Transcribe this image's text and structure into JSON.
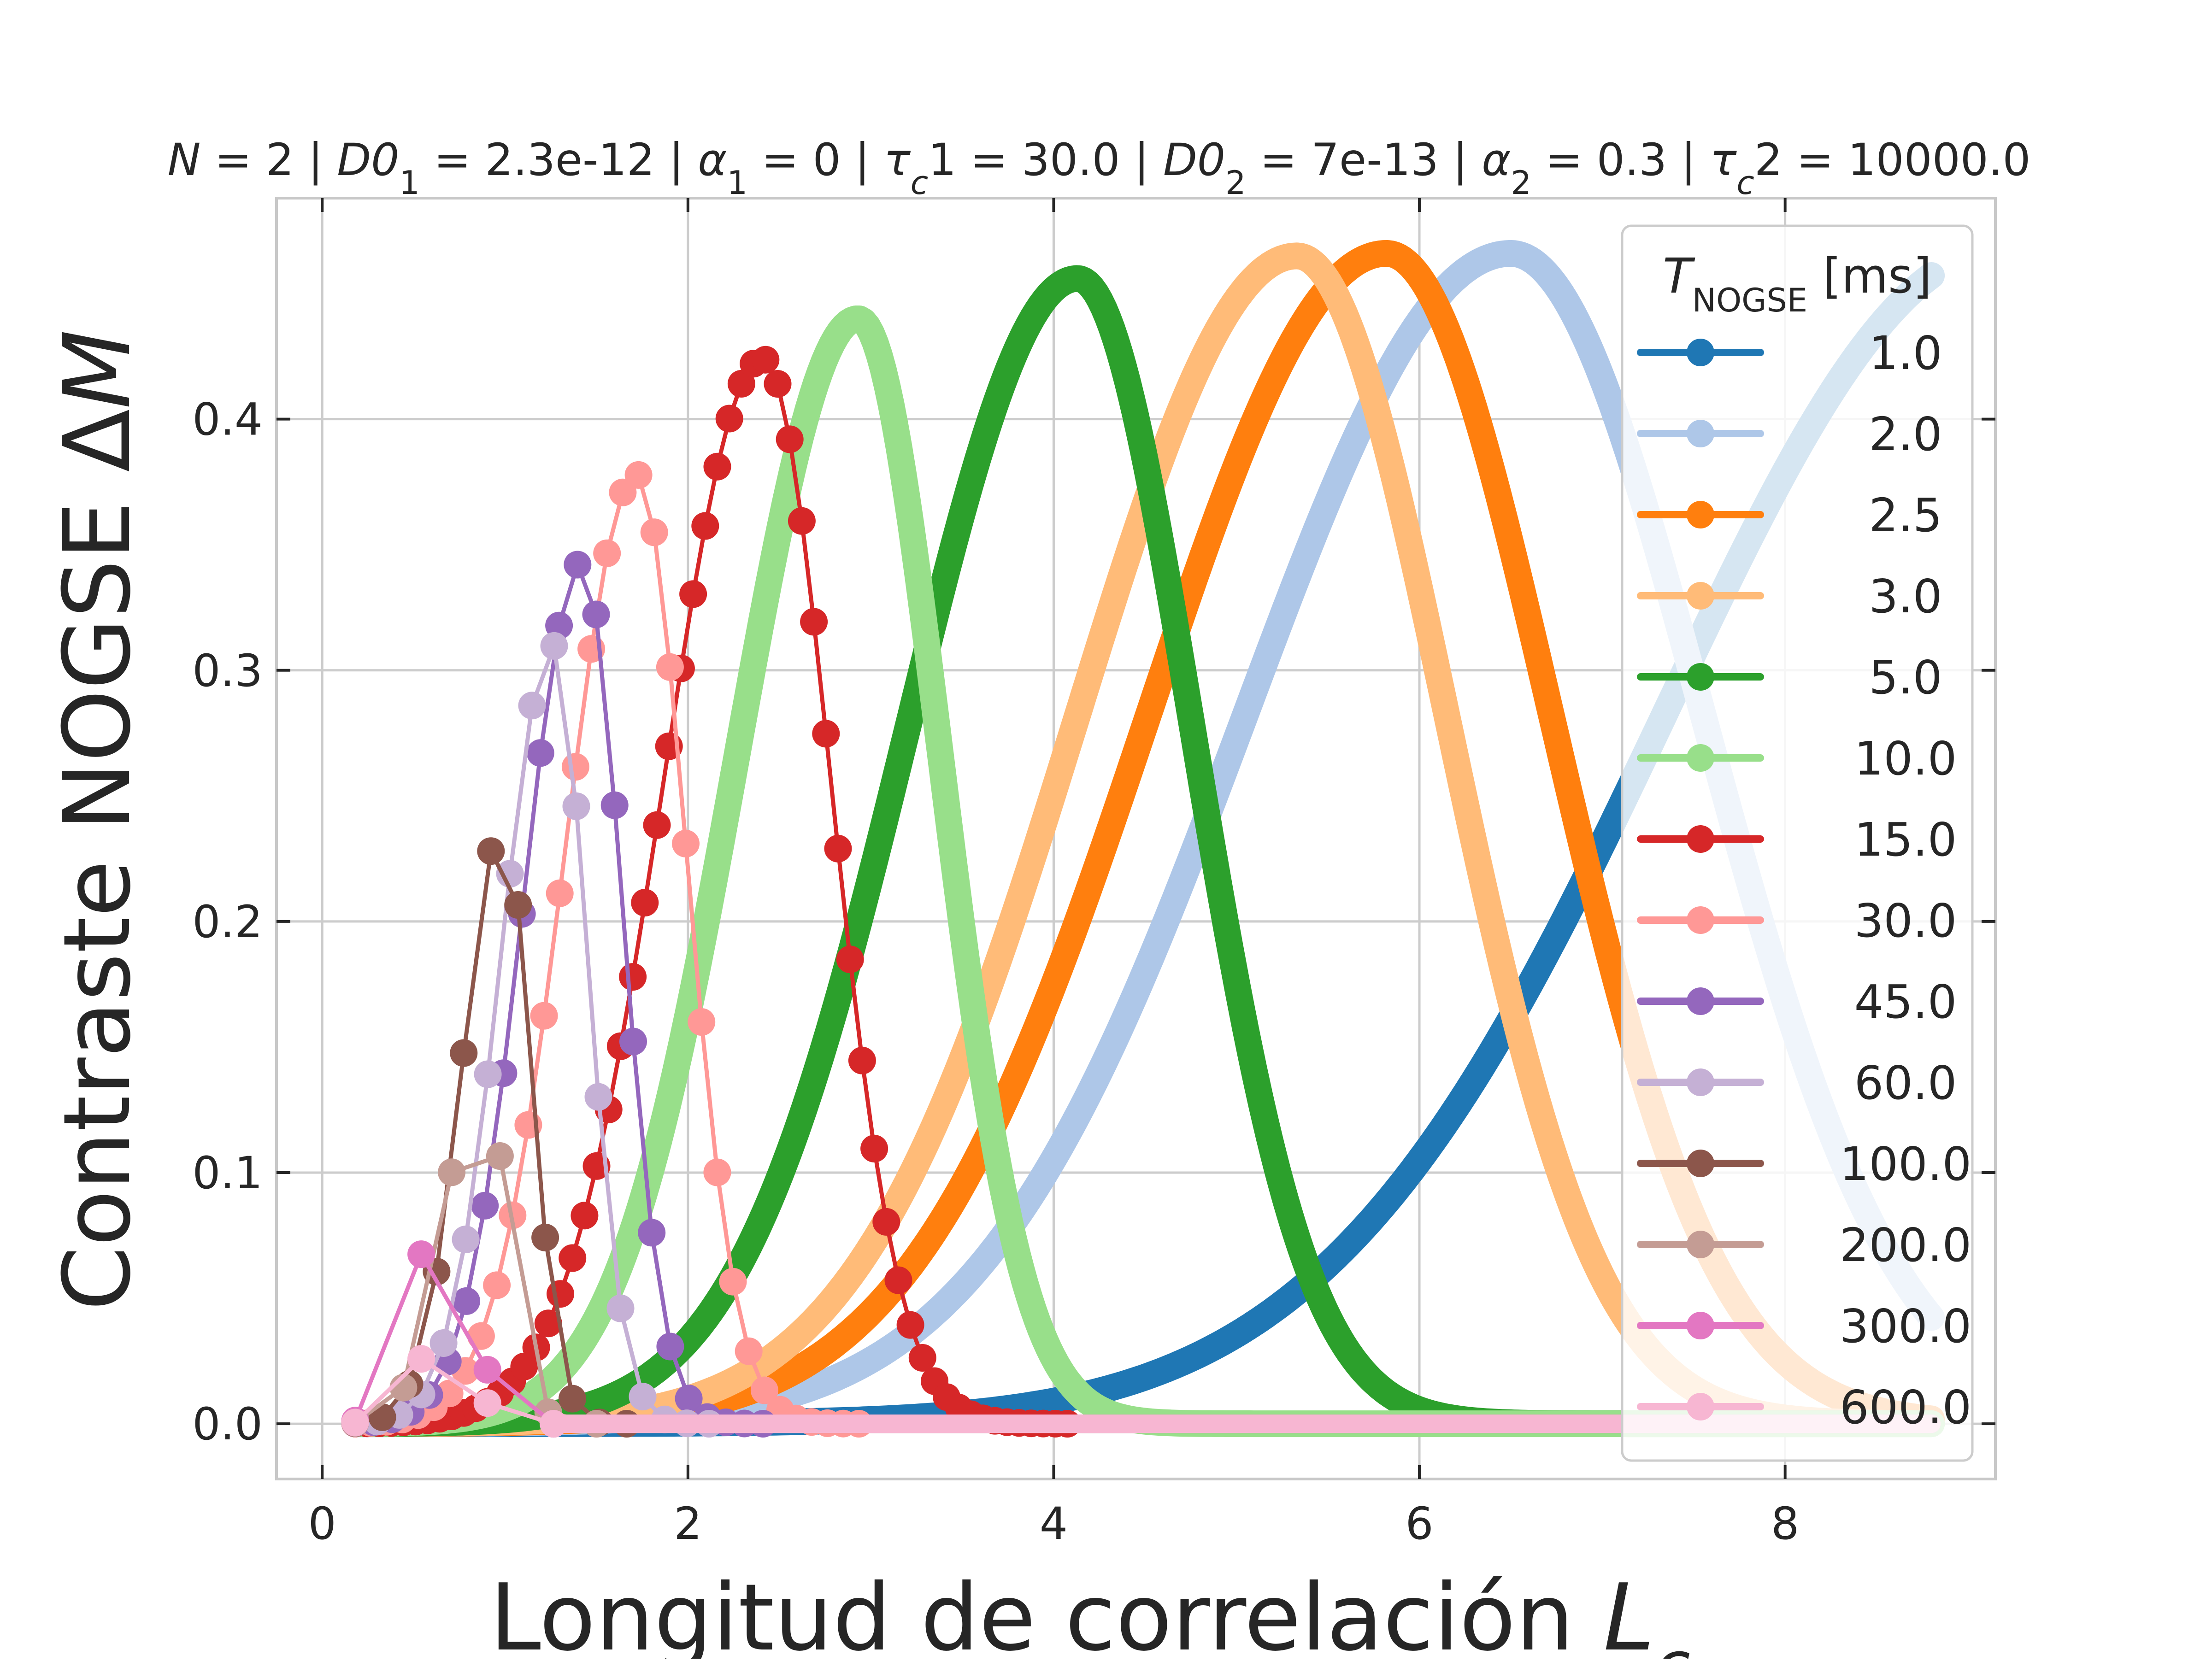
{
  "chart_data": {
    "type": "line",
    "title": {
      "parts": [
        {
          "text": "N",
          "italic": true
        },
        {
          "text": " = 2 | "
        },
        {
          "text": "D0",
          "italic": true
        },
        {
          "text": "1",
          "sub": true
        },
        {
          "text": " = 2.3e-12 | "
        },
        {
          "text": "α",
          "italic": true
        },
        {
          "text": "1",
          "sub": true
        },
        {
          "text": " = 0 | "
        },
        {
          "text": "τ",
          "italic": true
        },
        {
          "text": "c",
          "sub": true,
          "italic": true
        },
        {
          "text": "1 = 30.0 | "
        },
        {
          "text": "D0",
          "italic": true
        },
        {
          "text": "2",
          "sub": true
        },
        {
          "text": " = 7e-13 | "
        },
        {
          "text": "α",
          "italic": true
        },
        {
          "text": "2",
          "sub": true
        },
        {
          "text": " = 0.3 | "
        },
        {
          "text": "τ",
          "italic": true
        },
        {
          "text": "c",
          "sub": true,
          "italic": true
        },
        {
          "text": "2 = 10000.0"
        }
      ]
    },
    "xlabel": {
      "text": "Longitud de correlación ",
      "var": "L",
      "var_sub": "c"
    },
    "ylabel": {
      "text": "Contraste NOGSE Δ",
      "var": "M"
    },
    "xlim": [
      -0.25,
      9.15
    ],
    "ylim": [
      -0.022,
      0.488
    ],
    "xticks": [
      0,
      2,
      4,
      6,
      8
    ],
    "xtick_labels": [
      "0",
      "2",
      "4",
      "6",
      "8"
    ],
    "yticks": [
      0.0,
      0.1,
      0.2,
      0.3,
      0.4
    ],
    "ytick_labels": [
      "0.0",
      "0.1",
      "0.2",
      "0.3",
      "0.4"
    ],
    "grid": true,
    "legend_position": "top-right",
    "legend_title": {
      "var": "T",
      "var_sub": "NOGSE",
      "unit": " [ms]"
    },
    "series": [
      {
        "name": "1.0",
        "color": "#1f77b4",
        "peak_x": 9.2,
        "peak_y": 0.468,
        "sigma_left": 1.85,
        "sigma_right": 1.0,
        "n_points": 0
      },
      {
        "name": "2.0",
        "color": "#aec7e8",
        "peak_x": 6.5,
        "peak_y": 0.466,
        "sigma_left": 1.45,
        "sigma_right": 1.05,
        "n_points": 0
      },
      {
        "name": "2.5",
        "color": "#ff7f0e",
        "peak_x": 5.82,
        "peak_y": 0.466,
        "sigma_left": 1.3,
        "sigma_right": 0.9,
        "n_points": 0
      },
      {
        "name": "3.0",
        "color": "#ffbb78",
        "peak_x": 5.33,
        "peak_y": 0.465,
        "sigma_left": 1.2,
        "sigma_right": 0.82,
        "n_points": 0
      },
      {
        "name": "5.0",
        "color": "#2ca02c",
        "peak_x": 4.13,
        "peak_y": 0.456,
        "sigma_left": 0.93,
        "sigma_right": 0.63,
        "n_points": 0
      },
      {
        "name": "10.0",
        "color": "#98df8a",
        "peak_x": 2.93,
        "peak_y": 0.44,
        "sigma_left": 0.66,
        "sigma_right": 0.45,
        "n_points": 0
      },
      {
        "name": "15.0",
        "color": "#d62728",
        "peak_x": 2.41,
        "peak_y": 0.424,
        "sigma_left": 0.54,
        "sigma_right": 0.37,
        "n_points": 60
      },
      {
        "name": "30.0",
        "color": "#ff9896",
        "peak_x": 1.72,
        "peak_y": 0.378,
        "sigma_left": 0.39,
        "sigma_right": 0.27,
        "n_points": 33
      },
      {
        "name": "45.0",
        "color": "#9467bd",
        "peak_x": 1.42,
        "peak_y": 0.343,
        "sigma_left": 0.32,
        "sigma_right": 0.22,
        "n_points": 23
      },
      {
        "name": "60.0",
        "color": "#c5b0d5",
        "peak_x": 1.26,
        "peak_y": 0.31,
        "sigma_left": 0.28,
        "sigma_right": 0.19,
        "n_points": 17
      },
      {
        "name": "100.0",
        "color": "#8c564b",
        "peak_x": 0.99,
        "peak_y": 0.239,
        "sigma_left": 0.22,
        "sigma_right": 0.15,
        "n_points": 11
      },
      {
        "name": "200.0",
        "color": "#c49c94",
        "peak_x": 0.87,
        "peak_y": 0.139,
        "sigma_left": 0.2,
        "sigma_right": 0.14,
        "n_points": 6
      },
      {
        "name": "300.0",
        "color": "#e377c2",
        "peak_x": 0.68,
        "peak_y": 0.094,
        "sigma_left": 0.17,
        "sigma_right": 0.13,
        "n_points": 4
      },
      {
        "name": "600.0",
        "color": "#f7b6d2",
        "peak_x": 0.68,
        "peak_y": 0.036,
        "sigma_left": 0.17,
        "sigma_right": 0.13,
        "n_points": 4
      }
    ],
    "x_start": 0.18,
    "x_end": 8.8
  }
}
